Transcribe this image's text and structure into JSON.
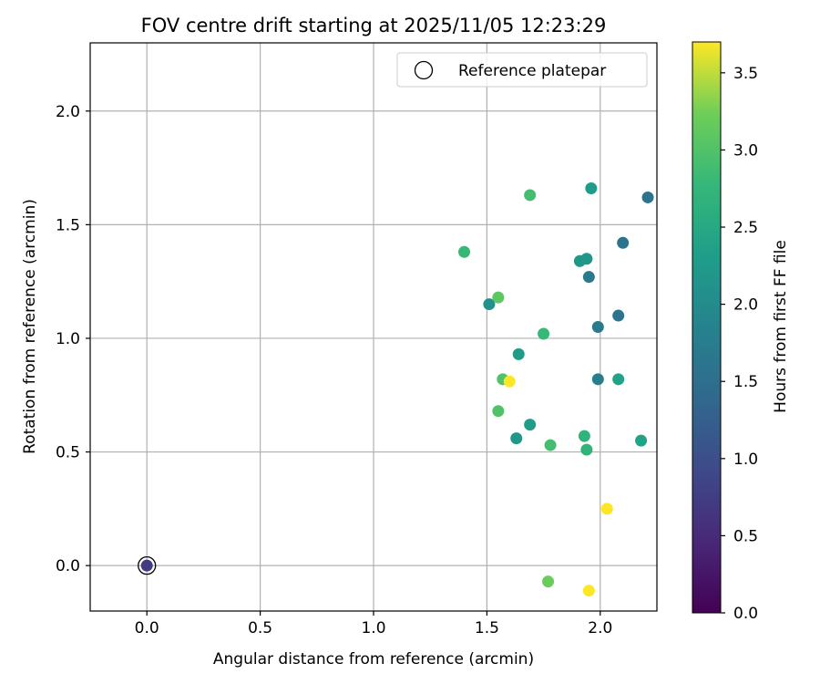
{
  "chart_data": {
    "type": "scatter",
    "title": "FOV centre drift starting at 2025/11/05 12:23:29",
    "xlabel": "Angular distance from reference (arcmin)",
    "ylabel": "Rotation from reference (arcmin)",
    "xlim": [
      -0.25,
      2.25
    ],
    "ylim": [
      -0.2,
      2.3
    ],
    "xticks": [
      0.0,
      0.5,
      1.0,
      1.5,
      2.0
    ],
    "yticks": [
      0.0,
      0.5,
      1.0,
      1.5,
      2.0
    ],
    "grid": true,
    "legend": {
      "placement": "top-right",
      "entries": [
        "Reference platepar"
      ]
    },
    "colorbar": {
      "label": "Hours from first FF file",
      "min": 0.0,
      "max": 3.7,
      "ticks": [
        0.0,
        0.5,
        1.0,
        1.5,
        2.0,
        2.5,
        3.0,
        3.5
      ],
      "colormap": "viridis"
    },
    "reference_point": {
      "x": 0.0,
      "y": 0.0
    },
    "points": [
      {
        "x": 0.0,
        "y": 0.0,
        "hours": 0.75
      },
      {
        "x": 2.21,
        "y": 1.62,
        "hours": 1.6
      },
      {
        "x": 2.1,
        "y": 1.42,
        "hours": 1.6
      },
      {
        "x": 1.95,
        "y": 1.27,
        "hours": 1.7
      },
      {
        "x": 2.08,
        "y": 1.1,
        "hours": 1.6
      },
      {
        "x": 1.99,
        "y": 1.05,
        "hours": 1.7
      },
      {
        "x": 1.99,
        "y": 0.82,
        "hours": 1.8
      },
      {
        "x": 1.96,
        "y": 1.66,
        "hours": 2.3
      },
      {
        "x": 1.94,
        "y": 1.35,
        "hours": 2.2
      },
      {
        "x": 1.91,
        "y": 1.34,
        "hours": 2.2
      },
      {
        "x": 1.51,
        "y": 1.15,
        "hours": 2.1
      },
      {
        "x": 1.64,
        "y": 0.93,
        "hours": 2.3
      },
      {
        "x": 1.69,
        "y": 0.62,
        "hours": 2.3
      },
      {
        "x": 1.63,
        "y": 0.56,
        "hours": 2.2
      },
      {
        "x": 2.08,
        "y": 0.82,
        "hours": 2.4
      },
      {
        "x": 2.18,
        "y": 0.55,
        "hours": 2.4
      },
      {
        "x": 1.69,
        "y": 1.63,
        "hours": 2.9
      },
      {
        "x": 1.4,
        "y": 1.38,
        "hours": 2.8
      },
      {
        "x": 1.75,
        "y": 1.02,
        "hours": 2.8
      },
      {
        "x": 1.93,
        "y": 0.57,
        "hours": 2.7
      },
      {
        "x": 1.94,
        "y": 0.51,
        "hours": 2.7
      },
      {
        "x": 1.78,
        "y": 0.53,
        "hours": 2.9
      },
      {
        "x": 1.55,
        "y": 1.18,
        "hours": 3.1
      },
      {
        "x": 1.57,
        "y": 0.82,
        "hours": 3.0
      },
      {
        "x": 1.55,
        "y": 0.68,
        "hours": 3.0
      },
      {
        "x": 1.77,
        "y": -0.07,
        "hours": 3.2
      },
      {
        "x": 1.6,
        "y": 0.81,
        "hours": 3.7
      },
      {
        "x": 2.03,
        "y": 0.25,
        "hours": 3.7
      },
      {
        "x": 1.95,
        "y": -0.11,
        "hours": 3.7
      }
    ]
  }
}
